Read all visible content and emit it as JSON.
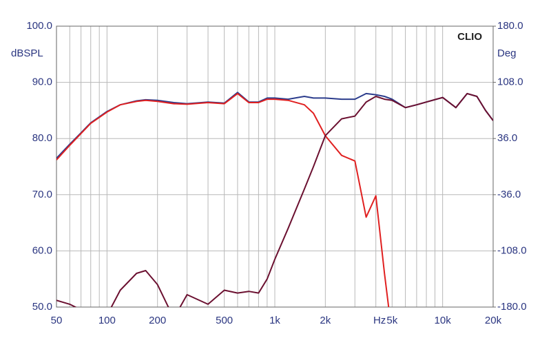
{
  "chart_data": {
    "type": "line",
    "annotation": "CLIO",
    "ylabel": "dBSPL",
    "y2label": "Deg",
    "xlabel": "Hz",
    "log_x": true,
    "grid": true,
    "x": [
      50,
      60,
      70,
      80,
      100,
      120,
      150,
      170,
      200,
      250,
      300,
      400,
      500,
      600,
      700,
      800,
      900,
      1000,
      1200,
      1500,
      1700,
      2000,
      2500,
      3000,
      3500,
      4000,
      4500,
      5000,
      6000,
      7000,
      8000,
      10000,
      12000,
      14000,
      16000,
      18000,
      20000
    ],
    "series": [
      {
        "color": "#2b3c8c",
        "values": [
          76.5,
          79,
          81,
          82.8,
          84.8,
          86,
          86.7,
          86.9,
          86.8,
          86.4,
          86.2,
          86.5,
          86.3,
          88.2,
          86.5,
          86.5,
          87.2,
          87.2,
          87,
          87.5,
          87.2,
          87.2,
          87,
          87,
          88,
          87.8,
          87.5,
          87,
          85.5,
          86,
          86.5,
          87.3,
          85.5,
          88,
          87.5,
          85,
          83.2
        ]
      },
      {
        "color": "#e02020",
        "values": [
          76.2,
          78.8,
          80.9,
          82.7,
          84.7,
          86,
          86.6,
          86.8,
          86.6,
          86.2,
          86.1,
          86.4,
          86.2,
          88,
          86.4,
          86.4,
          87,
          87,
          86.8,
          86,
          84.5,
          80.5,
          77,
          76,
          66,
          69.8,
          56,
          45,
          null,
          null,
          null,
          null,
          null,
          null,
          null,
          null,
          null
        ]
      },
      {
        "color": "#6b1030",
        "values": [
          51.2,
          50.5,
          49.5,
          48,
          48.5,
          53,
          56,
          56.5,
          54,
          48,
          52.2,
          50.5,
          53,
          52.5,
          52.8,
          52.5,
          55,
          58.5,
          64,
          71,
          75,
          80.5,
          83.5,
          84,
          86.5,
          87.5,
          87,
          86.8,
          85.5,
          86,
          86.5,
          87.3,
          85.5,
          88,
          87.5,
          85,
          83.2
        ]
      }
    ],
    "xlim": [
      50,
      20000
    ],
    "xticks": [
      50,
      100,
      200,
      500,
      {
        "value": 1000,
        "label": "1k"
      },
      {
        "value": 2000,
        "label": "2k"
      },
      {
        "value": 5000,
        "label": "5k"
      },
      {
        "value": 10000,
        "label": "10k"
      },
      {
        "value": 20000,
        "label": "20k"
      }
    ],
    "xminorticks": [
      60,
      70,
      80,
      90,
      300,
      400,
      600,
      700,
      800,
      900,
      3000,
      4000,
      6000,
      7000,
      8000,
      9000
    ],
    "ylim": [
      50,
      100
    ],
    "yticks": [
      {
        "value": 50,
        "label": "50.0"
      },
      {
        "value": 60,
        "label": "60.0"
      },
      {
        "value": 70,
        "label": "70.0"
      },
      {
        "value": 80,
        "label": "80.0"
      },
      {
        "value": 90,
        "label": "90.0"
      },
      {
        "value": 100,
        "label": "100.0"
      }
    ],
    "y2lim": [
      -180,
      180
    ],
    "y2ticks": [
      {
        "value": -180,
        "label": "-180.0"
      },
      {
        "value": -108,
        "label": "-108.0"
      },
      {
        "value": -36,
        "label": "-36.0"
      },
      {
        "value": 36,
        "label": "36.0"
      },
      {
        "value": 108,
        "label": "108.0"
      },
      {
        "value": 180,
        "label": "180.0"
      }
    ]
  }
}
